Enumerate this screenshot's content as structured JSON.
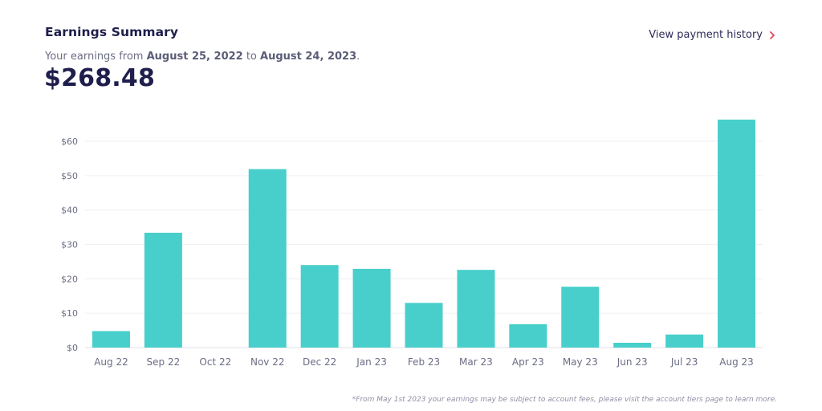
{
  "header": {
    "title": "Earnings Summary",
    "subtitle_prefix": "Your earnings from ",
    "start_date": "August 25, 2022",
    "subtitle_mid": " to ",
    "end_date": "August 24, 2023",
    "subtitle_suffix": ".",
    "total": "$268.48"
  },
  "history_link": {
    "label": "View payment history",
    "icon": "chevron-right-icon"
  },
  "colors": {
    "bar": "#48cfcb",
    "title": "#1f1e4c",
    "chevron": "#e8445c",
    "grid": "#eef0f4",
    "tick_text": "#6b6d85"
  },
  "footnote": "*From May 1st 2023 your earnings may be subject to account fees, please visit the account tiers page to learn more.",
  "chart_data": {
    "type": "bar",
    "categories": [
      "Aug 22",
      "Sep 22",
      "Oct 22",
      "Nov 22",
      "Dec 22",
      "Jan 23",
      "Feb 23",
      "Mar 23",
      "Apr 23",
      "May 23",
      "Jun 23",
      "Jul 23",
      "Aug 23"
    ],
    "values": [
      4.8,
      33.4,
      0,
      51.9,
      24.0,
      22.9,
      13.0,
      22.6,
      6.8,
      17.7,
      1.4,
      3.8,
      66.3
    ],
    "ylim": [
      0,
      66.3
    ],
    "yticks": [
      0,
      10,
      20,
      30,
      40,
      50,
      60
    ],
    "ytick_labels": [
      "$0",
      "$10",
      "$20",
      "$30",
      "$40",
      "$50",
      "$60"
    ],
    "grid": true
  }
}
